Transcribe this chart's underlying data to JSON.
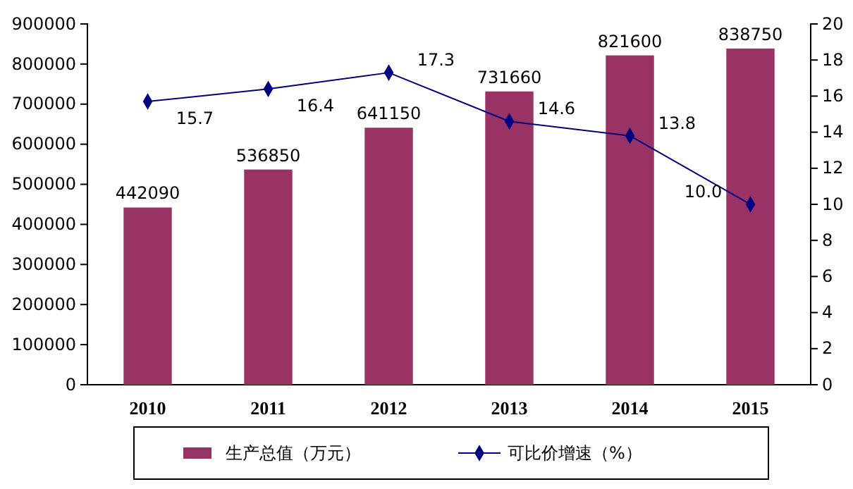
{
  "chart_data": {
    "type": "bar",
    "categories": [
      "2010",
      "2011",
      "2012",
      "2013",
      "2014",
      "2015"
    ],
    "series": [
      {
        "name": "生产总值（万元）",
        "color": "#993366",
        "values": [
          442090,
          536850,
          641150,
          731660,
          821600,
          838750
        ]
      },
      {
        "name": "可比价增速（%）",
        "type": "line",
        "axis": "y2",
        "color": "#000080",
        "marker": "diamond",
        "values": [
          15.7,
          16.4,
          17.3,
          14.6,
          13.8,
          10.0
        ],
        "value_labels": [
          "15.7",
          "16.4",
          "17.3",
          "14.6",
          "13.8",
          "10.0"
        ]
      }
    ],
    "data_labels": true,
    "ylim": [
      0,
      900000
    ],
    "yticks": [
      0,
      100000,
      200000,
      300000,
      400000,
      500000,
      600000,
      700000,
      800000,
      900000
    ],
    "y2lim": [
      0,
      20
    ],
    "y2ticks": [
      0,
      2,
      4,
      6,
      8,
      10,
      12,
      14,
      16,
      18,
      20
    ],
    "legend": "bottom",
    "grid": false
  }
}
